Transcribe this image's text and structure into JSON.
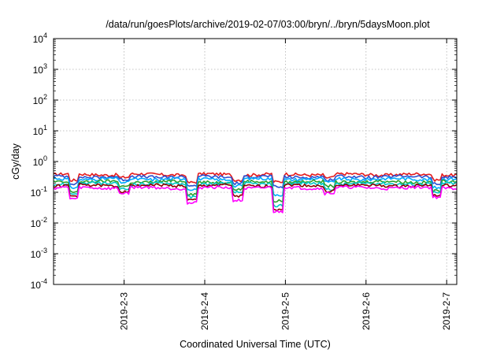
{
  "chart_data": {
    "type": "line",
    "title": "/data/run/goesPlots/archive/2019-02-07/03:00/bryn/../bryn/5daysMoon.plot",
    "xlabel": "Coordinated Universal Time (UTC)",
    "ylabel": "cGy/day",
    "yscale": "log",
    "ylim": [
      0.0001,
      10000
    ],
    "y_ticks": [
      {
        "value": 0.0001,
        "base": "10",
        "exp": "-4"
      },
      {
        "value": 0.001,
        "base": "10",
        "exp": "-3"
      },
      {
        "value": 0.01,
        "base": "10",
        "exp": "-2"
      },
      {
        "value": 0.1,
        "base": "10",
        "exp": "-1"
      },
      {
        "value": 1,
        "base": "10",
        "exp": "0"
      },
      {
        "value": 10,
        "base": "10",
        "exp": "1"
      },
      {
        "value": 100,
        "base": "10",
        "exp": "2"
      },
      {
        "value": 1000,
        "base": "10",
        "exp": "3"
      },
      {
        "value": 10000,
        "base": "10",
        "exp": "4"
      }
    ],
    "xlim": [
      "2019-02-02 03:00",
      "2019-02-07 03:00"
    ],
    "x_ticks": [
      {
        "value": "2019-02-03",
        "label": "2019-2-3"
      },
      {
        "value": "2019-02-04",
        "label": "2019-2-4"
      },
      {
        "value": "2019-02-05",
        "label": "2019-2-5"
      },
      {
        "value": "2019-02-06",
        "label": "2019-2-6"
      },
      {
        "value": "2019-02-07",
        "label": "2019-2-7"
      }
    ],
    "grid": true,
    "series": [
      {
        "color": "#e41a1c",
        "base": 0.38,
        "dips": [
          [
            "2019-02-02 09:00",
            0.62
          ],
          [
            "2019-02-03 00:00",
            0.8
          ],
          [
            "2019-02-03 20:00",
            0.55
          ],
          [
            "2019-02-04 10:00",
            0.7
          ],
          [
            "2019-02-04 22:00",
            0.55
          ],
          [
            "2019-02-05 13:00",
            0.8
          ],
          [
            "2019-02-06 21:00",
            0.68
          ]
        ]
      },
      {
        "color": "#2c4fd0",
        "base": 0.32,
        "dips": [
          [
            "2019-02-02 09:00",
            0.6
          ],
          [
            "2019-02-03 00:00",
            0.78
          ],
          [
            "2019-02-03 20:00",
            0.5
          ],
          [
            "2019-02-04 10:00",
            0.65
          ],
          [
            "2019-02-04 22:00",
            0.45
          ],
          [
            "2019-02-05 13:00",
            0.78
          ],
          [
            "2019-02-06 21:00",
            0.6
          ]
        ]
      },
      {
        "color": "#00aaff",
        "base": 0.27,
        "dips": [
          [
            "2019-02-02 09:00",
            0.55
          ],
          [
            "2019-02-03 00:00",
            0.75
          ],
          [
            "2019-02-03 20:00",
            0.45
          ],
          [
            "2019-02-04 10:00",
            0.6
          ],
          [
            "2019-02-04 22:00",
            0.32
          ],
          [
            "2019-02-05 13:00",
            0.75
          ],
          [
            "2019-02-06 21:00",
            0.55
          ]
        ]
      },
      {
        "color": "#2ca02c",
        "base": 0.22,
        "dips": [
          [
            "2019-02-02 09:00",
            0.5
          ],
          [
            "2019-02-03 00:00",
            0.72
          ],
          [
            "2019-02-03 20:00",
            0.4
          ],
          [
            "2019-02-04 10:00",
            0.55
          ],
          [
            "2019-02-04 22:00",
            0.25
          ],
          [
            "2019-02-05 13:00",
            0.72
          ],
          [
            "2019-02-06 21:00",
            0.5
          ]
        ]
      },
      {
        "color": "#00c8c8",
        "base": 0.19,
        "dips": [
          [
            "2019-02-02 09:00",
            0.48
          ],
          [
            "2019-02-03 00:00",
            0.7
          ],
          [
            "2019-02-03 20:00",
            0.38
          ],
          [
            "2019-02-04 10:00",
            0.5
          ],
          [
            "2019-02-04 22:00",
            0.2
          ],
          [
            "2019-02-05 13:00",
            0.7
          ],
          [
            "2019-02-06 21:00",
            0.48
          ]
        ]
      },
      {
        "color": "#8b0000",
        "base": 0.165,
        "dips": [
          [
            "2019-02-02 09:00",
            0.45
          ],
          [
            "2019-02-03 00:00",
            0.7
          ],
          [
            "2019-02-03 20:00",
            0.35
          ],
          [
            "2019-02-04 10:00",
            0.45
          ],
          [
            "2019-02-04 22:00",
            0.17
          ],
          [
            "2019-02-05 13:00",
            0.7
          ],
          [
            "2019-02-06 21:00",
            0.45
          ]
        ]
      },
      {
        "color": "#ff00ff",
        "base": 0.14,
        "dips": [
          [
            "2019-02-02 09:00",
            0.42
          ],
          [
            "2019-02-03 00:00",
            0.68
          ],
          [
            "2019-02-03 20:00",
            0.32
          ],
          [
            "2019-02-04 10:00",
            0.4
          ],
          [
            "2019-02-04 22:00",
            0.16
          ],
          [
            "2019-02-05 13:00",
            0.68
          ],
          [
            "2019-02-06 21:00",
            0.5
          ]
        ]
      }
    ]
  }
}
